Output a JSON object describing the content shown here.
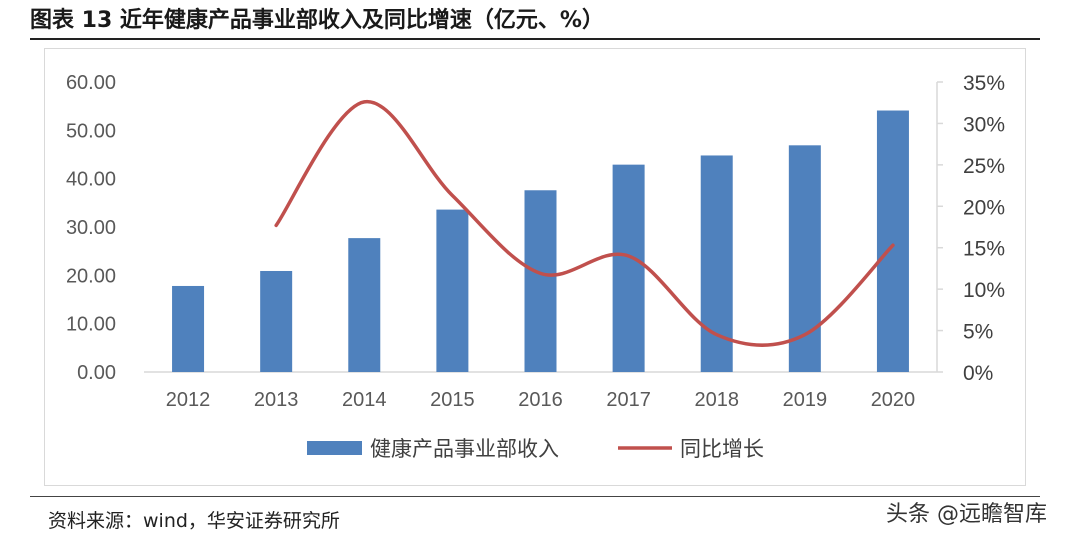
{
  "title": "图表 13 近年健康产品事业部收入及同比增速（亿元、%）",
  "source": "资料来源：wind，华安证券研究所",
  "watermark": "头条 @远瞻智库",
  "colors": {
    "bar": "#4f81bd",
    "line": "#c0504d",
    "axis": "#595959",
    "grid": "#d9d9d9"
  },
  "chart_data": {
    "type": "bar+line",
    "categories": [
      "2012",
      "2013",
      "2014",
      "2015",
      "2016",
      "2017",
      "2018",
      "2019",
      "2020"
    ],
    "series": [
      {
        "name": "健康产品事业部收入",
        "type": "bar",
        "axis": "left",
        "values": [
          17.8,
          20.9,
          27.7,
          33.6,
          37.6,
          42.9,
          44.8,
          46.9,
          54.1
        ]
      },
      {
        "name": "同比增长",
        "type": "line",
        "axis": "right",
        "values": [
          null,
          17.7,
          32.6,
          21.3,
          11.9,
          14.0,
          4.5,
          4.5,
          15.3
        ]
      }
    ],
    "y_left": {
      "ylim": [
        0,
        60
      ],
      "ticks": [
        "0.00",
        "10.00",
        "20.00",
        "30.00",
        "40.00",
        "50.00",
        "60.00"
      ]
    },
    "y_right": {
      "ylim": [
        0,
        35
      ],
      "ticks": [
        "0%",
        "5%",
        "10%",
        "15%",
        "20%",
        "25%",
        "30%",
        "35%"
      ]
    },
    "legend_position": "bottom",
    "grid": false
  }
}
